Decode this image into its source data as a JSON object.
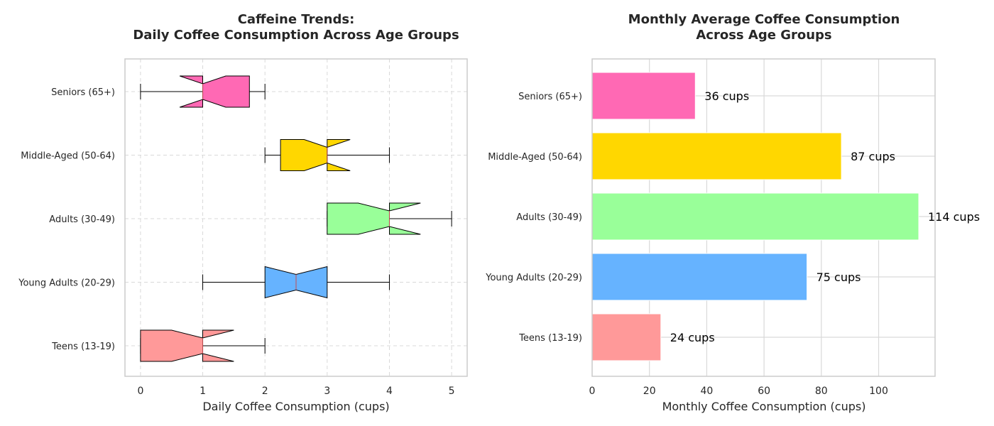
{
  "chart_data": [
    {
      "type": "boxplot",
      "orientation": "horizontal",
      "notched": true,
      "title_lines": [
        "Caffeine Trends:",
        "Daily Coffee Consumption Across Age Groups"
      ],
      "xlabel": "Daily Coffee Consumption (cups)",
      "ylabel": "",
      "xlim": [
        -0.25,
        5.25
      ],
      "xticks": [
        "0",
        "1",
        "2",
        "3",
        "4",
        "5"
      ],
      "grid": true,
      "categories": [
        "Teens (13-19)",
        "Young Adults (20-29)",
        "Adults (30-49)",
        "Middle-Aged (50-64)",
        "Seniors (65+)"
      ],
      "boxes": [
        {
          "category": "Teens (13-19)",
          "whislo": 0,
          "q1": 0,
          "med": 1,
          "q3": 1,
          "whishi": 2,
          "notch_lo": 0.5,
          "notch_hi": 1.5,
          "color": "#FF9999"
        },
        {
          "category": "Young Adults (20-29)",
          "whislo": 1,
          "q1": 2,
          "med": 2.5,
          "q3": 3,
          "whishi": 4,
          "notch_lo": 2,
          "notch_hi": 3,
          "color": "#66B3FF"
        },
        {
          "category": "Adults (30-49)",
          "whislo": 3,
          "q1": 3,
          "med": 4,
          "q3": 4,
          "whishi": 5,
          "notch_lo": 3.5,
          "notch_hi": 4.5,
          "color": "#99FF99"
        },
        {
          "category": "Middle-Aged (50-64)",
          "whislo": 2,
          "q1": 2.25,
          "med": 3,
          "q3": 3,
          "whishi": 4,
          "notch_lo": 2.63,
          "notch_hi": 3.37,
          "color": "#FFD700"
        },
        {
          "category": "Seniors (65+)",
          "whislo": 0,
          "q1": 1,
          "med": 1,
          "q3": 1.75,
          "whishi": 2,
          "notch_lo": 0.63,
          "notch_hi": 1.37,
          "color": "#FF69B4"
        }
      ]
    },
    {
      "type": "bar",
      "orientation": "horizontal",
      "title_lines": [
        "Monthly Average Coffee Consumption",
        "Across Age Groups"
      ],
      "xlabel": "Monthly Coffee Consumption (cups)",
      "ylabel": "",
      "xlim": [
        0,
        119.7
      ],
      "xticks": [
        "0",
        "20",
        "40",
        "60",
        "80",
        "100"
      ],
      "grid": true,
      "categories": [
        "Teens (13-19)",
        "Young Adults (20-29)",
        "Adults (30-49)",
        "Middle-Aged (50-64)",
        "Seniors (65+)"
      ],
      "values": [
        24,
        75,
        114,
        87,
        36
      ],
      "value_labels": [
        "24 cups",
        "75 cups",
        "114 cups",
        "87 cups",
        "36 cups"
      ],
      "colors": [
        "#FF9999",
        "#66B3FF",
        "#99FF99",
        "#FFD700",
        "#FF69B4"
      ]
    }
  ]
}
